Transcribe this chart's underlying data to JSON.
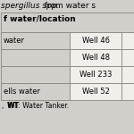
{
  "title_italic": "spergillus spp.",
  "title_normal": "  from water s",
  "col1_header": "f water/location",
  "rows": [
    [
      "water",
      "Well 46"
    ],
    [
      "",
      "Well 48"
    ],
    [
      "",
      "Well 233"
    ],
    [
      "ells water",
      "Well 52"
    ]
  ],
  "footer": ",  WT: Water Tanker.",
  "bg_color": "#d0cfc9",
  "white_color": "#f0efea",
  "border_color": "#888880",
  "title_fontsize": 6.5,
  "header_fontsize": 6.5,
  "cell_fontsize": 6.0,
  "footer_fontsize": 5.5
}
